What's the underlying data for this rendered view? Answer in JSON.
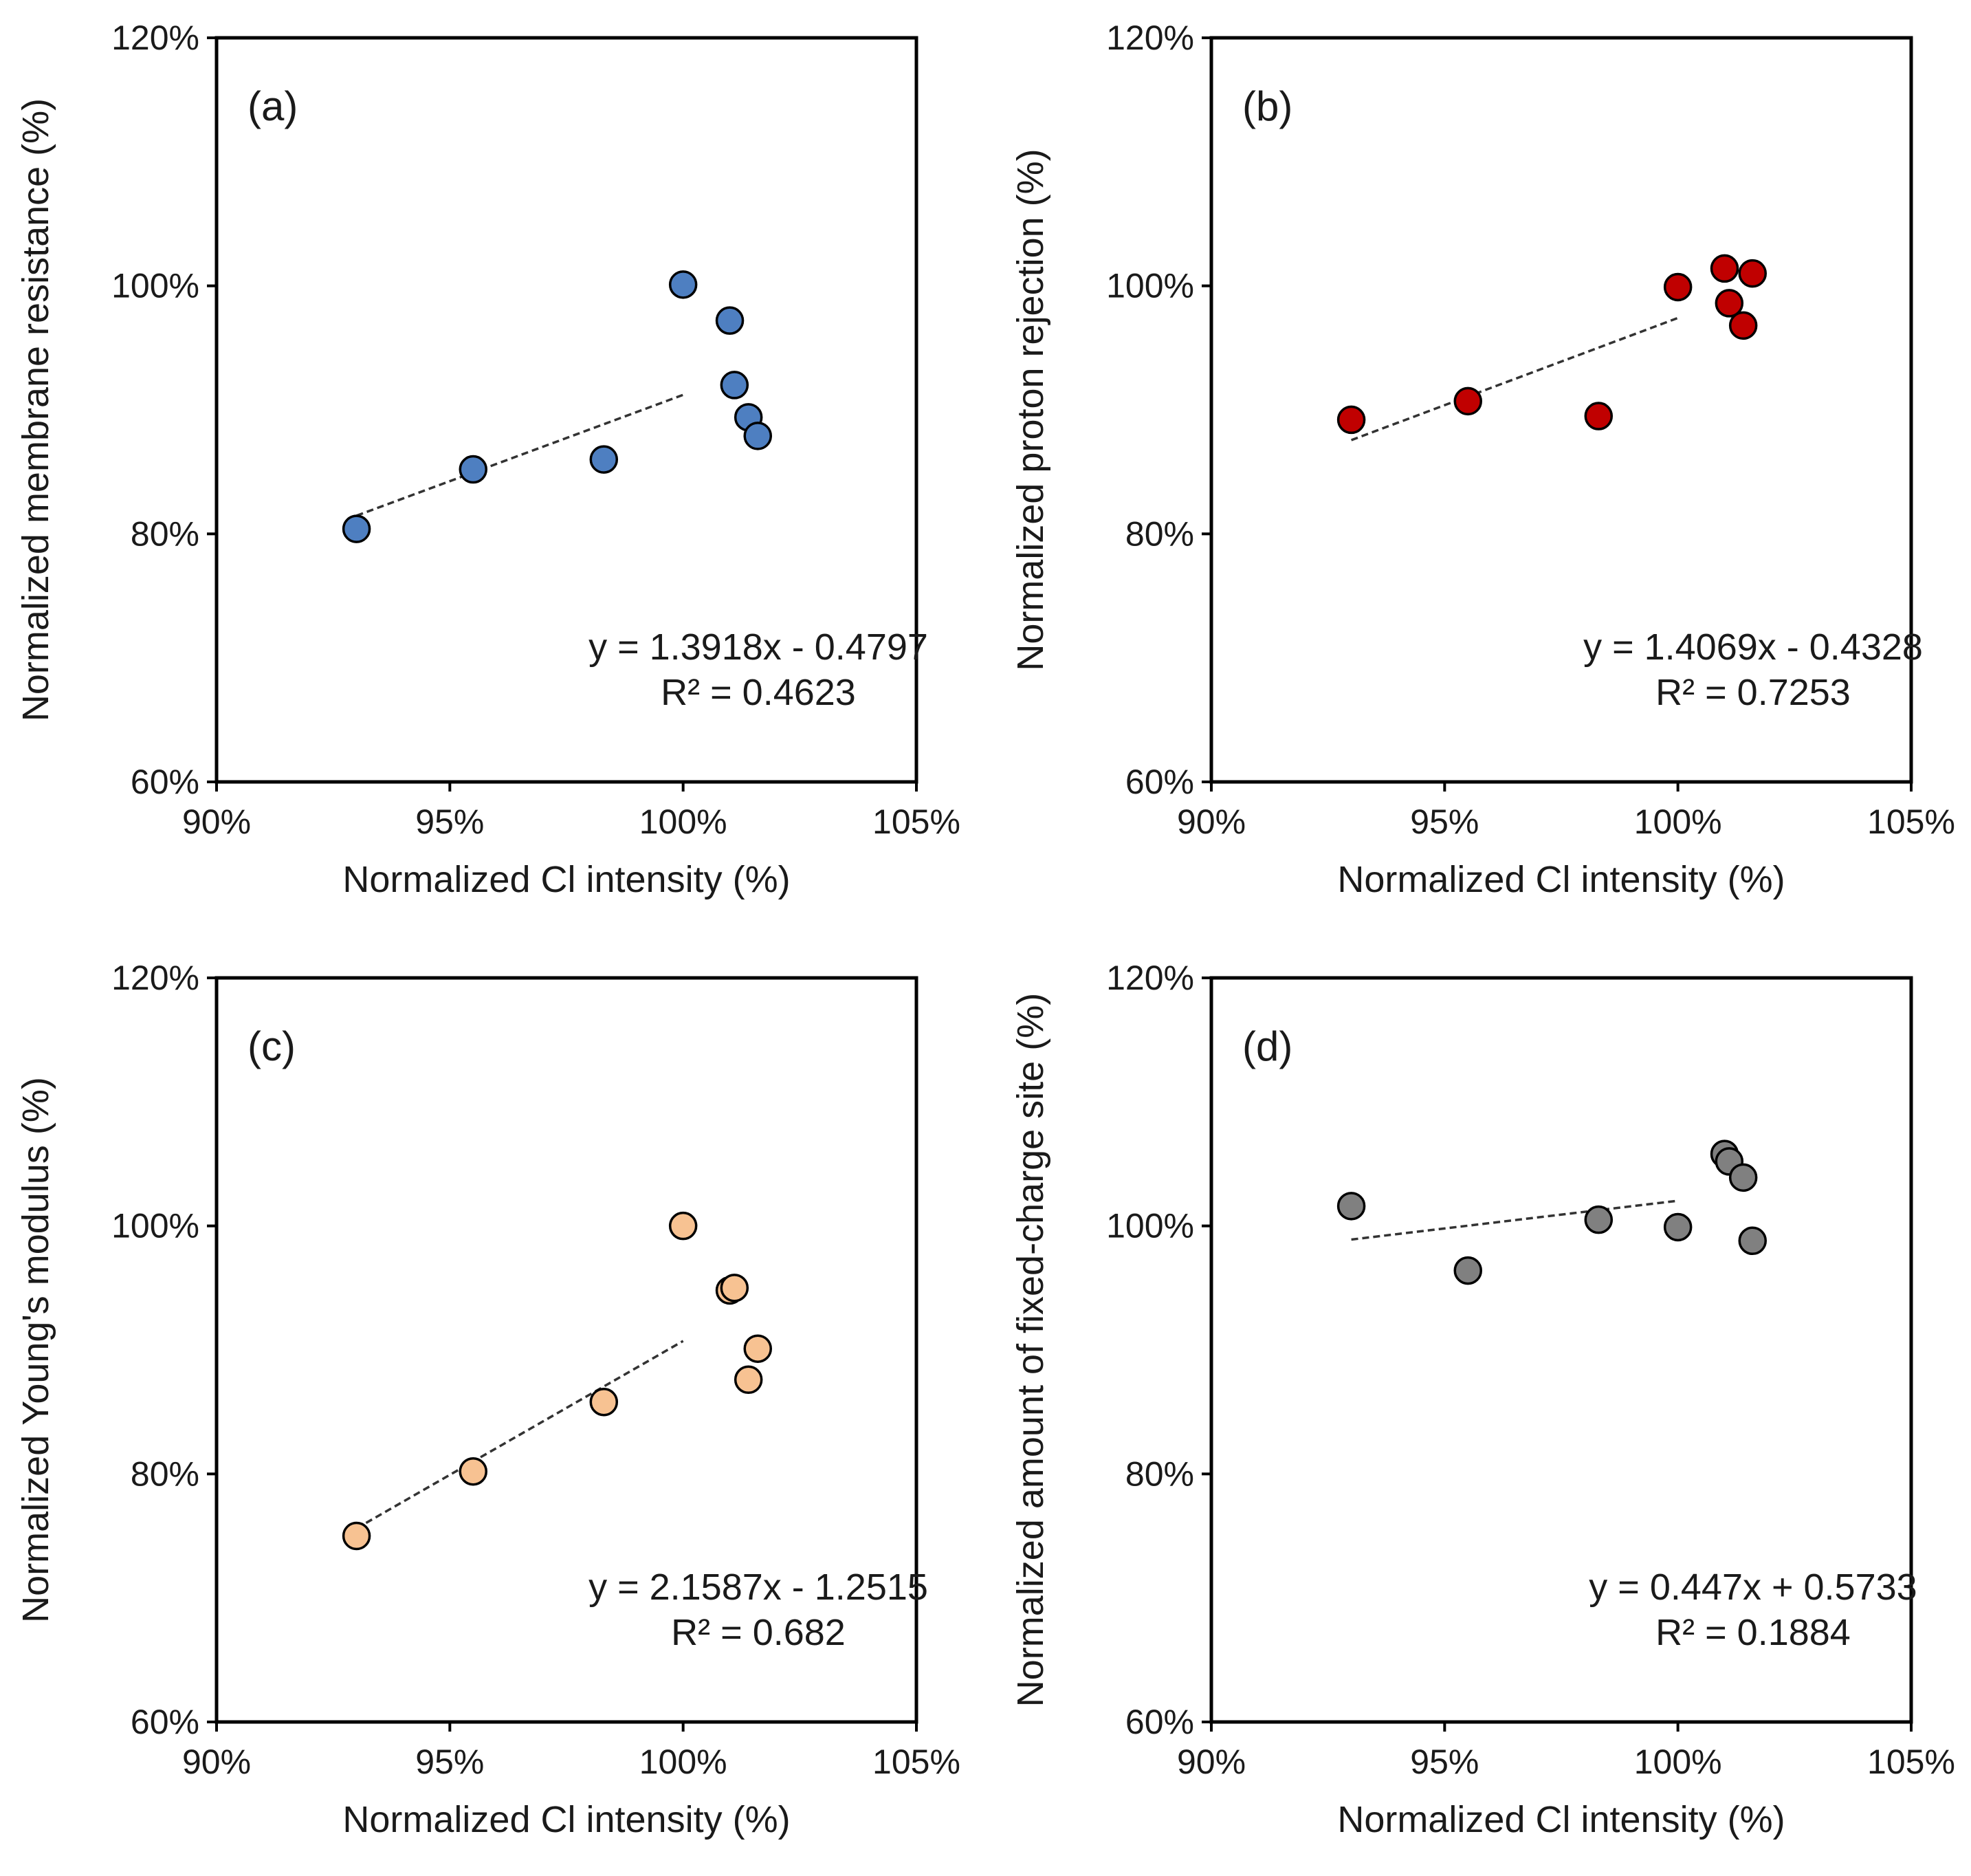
{
  "figure": {
    "panels": [
      {
        "id": "a",
        "color": "#4e7fc1"
      },
      {
        "id": "b",
        "color": "#c00000"
      },
      {
        "id": "c",
        "color": "#f7c292"
      },
      {
        "id": "d",
        "color": "#808080"
      }
    ]
  },
  "chart_data": [
    {
      "type": "scatter",
      "panel_label": "(a)",
      "xlabel": "Normalized Cl intensity  (%)",
      "ylabel": "Normalized membrane resistance (%)",
      "xlim": [
        90,
        105
      ],
      "ylim": [
        60,
        120
      ],
      "xticks": [
        90,
        95,
        100,
        105
      ],
      "yticks": [
        60,
        80,
        100,
        120
      ],
      "xtick_labels": [
        "90%",
        "95%",
        "100%",
        "105%"
      ],
      "ytick_labels": [
        "60%",
        "80%",
        "100%",
        "120%"
      ],
      "x": [
        93.0,
        95.5,
        98.3,
        100.0,
        101.0,
        101.1,
        101.4,
        101.6
      ],
      "y": [
        80.4,
        85.2,
        86.0,
        100.1,
        97.2,
        92.0,
        89.4,
        87.9
      ],
      "trendline": {
        "x": [
          93.0,
          100.0
        ],
        "slope": 1.3918,
        "intercept": -0.4797
      },
      "equation": "y = 1.3918x - 0.4797",
      "r_squared": "R² = 0.4623"
    },
    {
      "type": "scatter",
      "panel_label": "(b)",
      "xlabel": "Normalized Cl intensity  (%)",
      "ylabel": "Normalized proton rejection (%)",
      "xlim": [
        90,
        105
      ],
      "ylim": [
        60,
        120
      ],
      "xticks": [
        90,
        95,
        100,
        105
      ],
      "yticks": [
        60,
        80,
        100,
        120
      ],
      "xtick_labels": [
        "90%",
        "95%",
        "100%",
        "105%"
      ],
      "ytick_labels": [
        "60%",
        "80%",
        "100%",
        "120%"
      ],
      "x": [
        93.0,
        95.5,
        98.3,
        100.0,
        101.0,
        101.1,
        101.4,
        101.6
      ],
      "y": [
        89.2,
        90.7,
        89.5,
        99.9,
        101.4,
        98.6,
        96.8,
        101.0
      ],
      "trendline": {
        "x": [
          93.0,
          100.0
        ],
        "slope": 1.4069,
        "intercept": -0.4328
      },
      "equation": "y = 1.4069x - 0.4328",
      "r_squared": "R² = 0.7253"
    },
    {
      "type": "scatter",
      "panel_label": "(c)",
      "xlabel": "Normalized Cl intensity  (%)",
      "ylabel": "Normalized Young's modulus  (%)",
      "xlim": [
        90,
        105
      ],
      "ylim": [
        60,
        120
      ],
      "xticks": [
        90,
        95,
        100,
        105
      ],
      "yticks": [
        60,
        80,
        100,
        120
      ],
      "xtick_labels": [
        "90%",
        "95%",
        "100%",
        "105%"
      ],
      "ytick_labels": [
        "60%",
        "80%",
        "100%",
        "120%"
      ],
      "x": [
        93.0,
        95.5,
        98.3,
        100.0,
        101.0,
        101.1,
        101.4,
        101.6
      ],
      "y": [
        75.0,
        80.2,
        85.8,
        100.0,
        94.8,
        95.0,
        87.6,
        90.1
      ],
      "trendline": {
        "x": [
          93.0,
          100.0
        ],
        "slope": 2.1587,
        "intercept": -1.2515
      },
      "equation": "y = 2.1587x - 1.2515",
      "r_squared": "R² = 0.682"
    },
    {
      "type": "scatter",
      "panel_label": "(d)",
      "xlabel": "Normalized Cl intensity  (%)",
      "ylabel": "Normalized amount of fixed-charge site (%)",
      "xlim": [
        90,
        105
      ],
      "ylim": [
        60,
        120
      ],
      "xticks": [
        90,
        95,
        100,
        105
      ],
      "yticks": [
        60,
        80,
        100,
        120
      ],
      "xtick_labels": [
        "90%",
        "95%",
        "100%",
        "105%"
      ],
      "ytick_labels": [
        "60%",
        "80%",
        "100%",
        "120%"
      ],
      "x": [
        93.0,
        95.5,
        98.3,
        100.0,
        101.0,
        101.1,
        101.4,
        101.6
      ],
      "y": [
        101.6,
        96.4,
        100.5,
        99.9,
        105.8,
        105.2,
        103.9,
        98.8
      ],
      "trendline": {
        "x": [
          93.0,
          100.0
        ],
        "slope": 0.447,
        "intercept": 0.5733
      },
      "equation": "y = 0.447x + 0.5733",
      "r_squared": "R² = 0.1884"
    }
  ]
}
